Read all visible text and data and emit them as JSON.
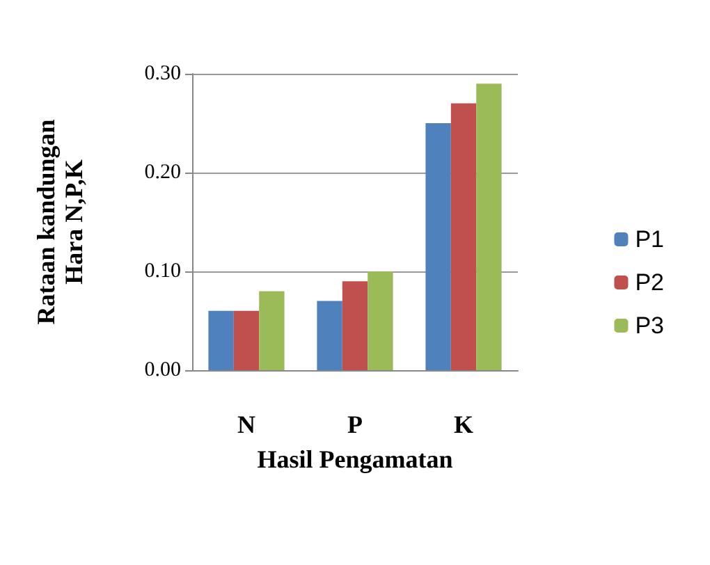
{
  "chart_data": {
    "type": "bar",
    "categories": [
      "N",
      "P",
      "K"
    ],
    "xlabel": "Hasil Pengamatan",
    "ylabel": "Rataan kandungan\nHara N,P,K",
    "series": [
      {
        "name": "P1",
        "color": "#4f81bd",
        "values": [
          0.06,
          0.07,
          0.25
        ]
      },
      {
        "name": "P2",
        "color": "#c0504d",
        "values": [
          0.06,
          0.09,
          0.27
        ]
      },
      {
        "name": "P3",
        "color": "#9bbb59",
        "values": [
          0.08,
          0.1,
          0.29
        ]
      }
    ],
    "ylim": [
      0,
      0.3
    ],
    "yticks": [
      {
        "value": 0,
        "label": "0.00"
      },
      {
        "value": 0.1,
        "label": "0.10"
      },
      {
        "value": 0.2,
        "label": "0.20"
      },
      {
        "value": 0.3,
        "label": "0.30"
      }
    ],
    "grid": "y",
    "legend": "right"
  }
}
